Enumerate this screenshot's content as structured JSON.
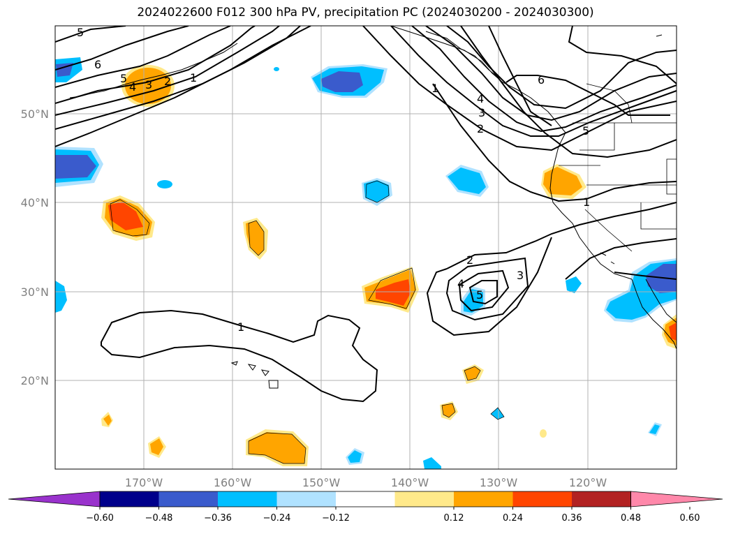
{
  "title": "2024022600 F012 300 hPa PV, precipitation PC (2024030200 - 2024030300)",
  "map": {
    "lon_labels": [
      "170°W",
      "160°W",
      "150°W",
      "140°W",
      "130°W",
      "120°W"
    ],
    "lat_labels": [
      "50°N",
      "40°N",
      "30°N",
      "20°N"
    ],
    "pv_contour_labels": [
      "5",
      "6",
      "5",
      "4",
      "3",
      "2",
      "1",
      "1",
      "4",
      "3",
      "2",
      "6",
      "5",
      "1",
      "2",
      "4",
      "5",
      "3",
      "1"
    ]
  },
  "colorbar": {
    "ticks": [
      "−0.60",
      "−0.48",
      "−0.36",
      "−0.24",
      "−0.12",
      "0.12",
      "0.24",
      "0.36",
      "0.48",
      "0.60"
    ],
    "colors": [
      "#9932cc",
      "#00008b",
      "#3a5bcc",
      "#00bfff",
      "#b0e2ff",
      "#ffffff",
      "#ffe98a",
      "#ffa500",
      "#ff4500",
      "#b22222",
      "#ff88aa"
    ]
  }
}
